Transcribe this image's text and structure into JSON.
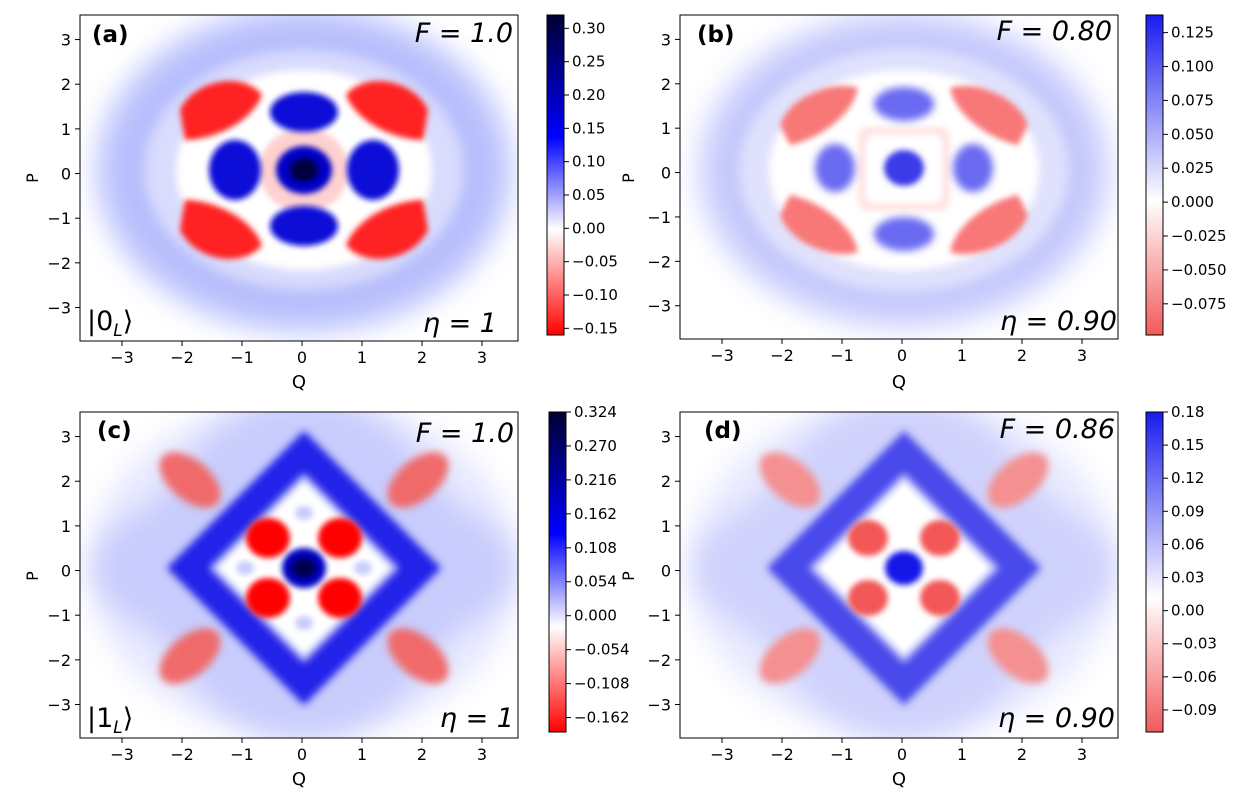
{
  "chart_data": [
    {
      "type": "heatmap",
      "panel_label": "(a)",
      "fidelity_label": "F = 1.0",
      "loss_label": "η = 1",
      "state_label": "|0",
      "state_sub": "L",
      "state_close": "⟩",
      "xlabel": "Q",
      "ylabel": "P",
      "xlim": [
        -3.7,
        3.6
      ],
      "ylim": [
        -3.75,
        3.55
      ],
      "xticks": [
        -3,
        -2,
        -1,
        0,
        1,
        2,
        3
      ],
      "yticks": [
        -3,
        -2,
        -1,
        0,
        1,
        2,
        3
      ],
      "xtick_labels": [
        "−3",
        "−2",
        "−1",
        "0",
        "1",
        "2",
        "3"
      ],
      "ytick_labels": [
        "−3",
        "−2",
        "−1",
        "0",
        "1",
        "2",
        "3"
      ],
      "colorbar": {
        "vmin": -0.16,
        "vmax": 0.32,
        "gradient": "dark",
        "ticks": [
          -0.15,
          -0.1,
          -0.05,
          0.0,
          0.05,
          0.1,
          0.15,
          0.2,
          0.25,
          0.3
        ],
        "tick_labels": [
          "−0.15",
          "−0.10",
          "−0.05",
          "0.00",
          "0.05",
          "0.10",
          "0.15",
          "0.20",
          "0.25",
          "0.30"
        ]
      }
    },
    {
      "type": "heatmap",
      "panel_label": "(b)",
      "fidelity_label": "F = 0.80",
      "loss_label": "η = 0.90",
      "state_label": "",
      "state_sub": "",
      "state_close": "",
      "xlabel": "Q",
      "ylabel": "P",
      "xlim": [
        -3.7,
        3.6
      ],
      "ylim": [
        -3.75,
        3.55
      ],
      "xticks": [
        -3,
        -2,
        -1,
        0,
        1,
        2,
        3
      ],
      "yticks": [
        -3,
        -2,
        -1,
        0,
        1,
        2,
        3
      ],
      "xtick_labels": [
        "−3",
        "−2",
        "−1",
        "0",
        "1",
        "2",
        "3"
      ],
      "ytick_labels": [
        "−3",
        "−2",
        "−1",
        "0",
        "1",
        "2",
        "3"
      ],
      "colorbar": {
        "vmin": -0.098,
        "vmax": 0.138,
        "gradient": "light",
        "ticks": [
          -0.075,
          -0.05,
          -0.025,
          0.0,
          0.025,
          0.05,
          0.075,
          0.1,
          0.125
        ],
        "tick_labels": [
          "−0.075",
          "−0.050",
          "−0.025",
          "0.000",
          "0.025",
          "0.050",
          "0.075",
          "0.100",
          "0.125"
        ]
      }
    },
    {
      "type": "heatmap",
      "panel_label": "(c)",
      "fidelity_label": "F = 1.0",
      "loss_label": "η = 1",
      "state_label": "|1",
      "state_sub": "L",
      "state_close": "⟩",
      "xlabel": "Q",
      "ylabel": "P",
      "xlim": [
        -3.7,
        3.6
      ],
      "ylim": [
        -3.75,
        3.55
      ],
      "xticks": [
        -3,
        -2,
        -1,
        0,
        1,
        2,
        3
      ],
      "yticks": [
        -3,
        -2,
        -1,
        0,
        1,
        2,
        3
      ],
      "xtick_labels": [
        "−3",
        "−2",
        "−1",
        "0",
        "1",
        "2",
        "3"
      ],
      "ytick_labels": [
        "−3",
        "−2",
        "−1",
        "0",
        "1",
        "2",
        "3"
      ],
      "colorbar": {
        "vmin": -0.185,
        "vmax": 0.324,
        "gradient": "dark",
        "ticks": [
          -0.162,
          -0.108,
          -0.054,
          0.0,
          0.054,
          0.108,
          0.162,
          0.216,
          0.27,
          0.324
        ],
        "tick_labels": [
          "−0.162",
          "−0.108",
          "−0.054",
          "0.000",
          "0.054",
          "0.108",
          "0.162",
          "0.216",
          "0.270",
          "0.324"
        ]
      }
    },
    {
      "type": "heatmap",
      "panel_label": "(d)",
      "fidelity_label": "F = 0.86",
      "loss_label": "η = 0.90",
      "state_label": "",
      "state_sub": "",
      "state_close": "",
      "xlabel": "Q",
      "ylabel": "P",
      "xlim": [
        -3.7,
        3.6
      ],
      "ylim": [
        -3.75,
        3.55
      ],
      "xticks": [
        -3,
        -2,
        -1,
        0,
        1,
        2,
        3
      ],
      "yticks": [
        -3,
        -2,
        -1,
        0,
        1,
        2,
        3
      ],
      "xtick_labels": [
        "−3",
        "−2",
        "−1",
        "0",
        "1",
        "2",
        "3"
      ],
      "ytick_labels": [
        "−3",
        "−2",
        "−1",
        "0",
        "1",
        "2",
        "3"
      ],
      "colorbar": {
        "vmin": -0.11,
        "vmax": 0.18,
        "gradient": "light",
        "ticks": [
          -0.09,
          -0.06,
          -0.03,
          0.0,
          0.03,
          0.06,
          0.09,
          0.12,
          0.15,
          0.18
        ],
        "tick_labels": [
          "−0.09",
          "−0.06",
          "−0.03",
          "0.00",
          "0.03",
          "0.06",
          "0.09",
          "0.12",
          "0.15",
          "0.18"
        ]
      }
    }
  ]
}
